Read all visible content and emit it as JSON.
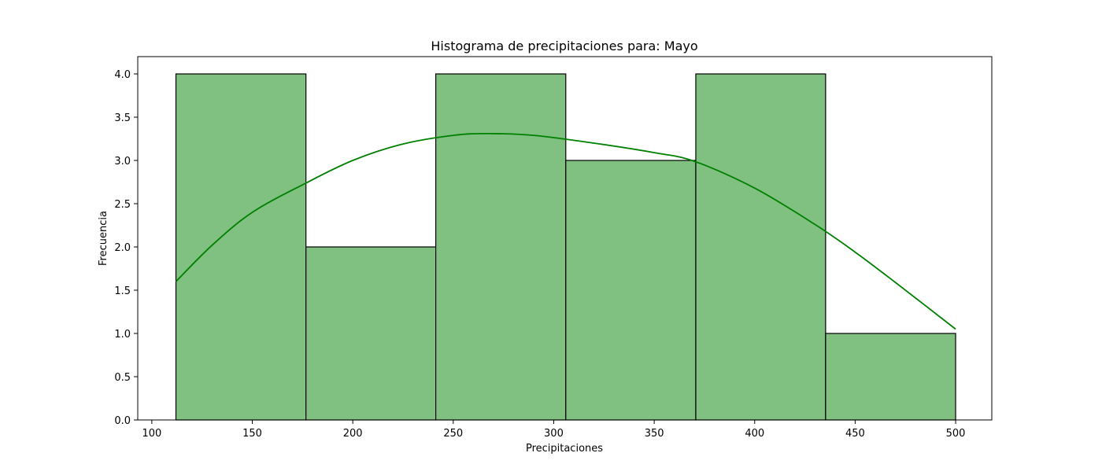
{
  "chart_data": {
    "type": "bar",
    "title": "Histograma de precipitaciones para: Mayo",
    "xlabel": "Precipitaciones",
    "ylabel": "Frecuencia",
    "xlim": [
      93,
      518
    ],
    "ylim": [
      0,
      4.2
    ],
    "xticks": [
      100,
      150,
      200,
      250,
      300,
      350,
      400,
      450,
      500
    ],
    "yticks": [
      0.0,
      0.5,
      1.0,
      1.5,
      2.0,
      2.5,
      3.0,
      3.5,
      4.0
    ],
    "bins": [
      {
        "x0": 112,
        "x1": 176.7,
        "count": 4
      },
      {
        "x0": 176.7,
        "x1": 241.3,
        "count": 2
      },
      {
        "x0": 241.3,
        "x1": 306.0,
        "count": 4
      },
      {
        "x0": 306.0,
        "x1": 370.7,
        "count": 3
      },
      {
        "x0": 370.7,
        "x1": 435.3,
        "count": 4
      },
      {
        "x0": 435.3,
        "x1": 500,
        "count": 1
      }
    ],
    "kde": {
      "x": [
        112,
        130,
        150,
        176,
        200,
        225,
        250,
        267,
        290,
        320,
        350,
        370,
        400,
        430,
        450,
        470,
        500
      ],
      "y": [
        1.6,
        2.02,
        2.4,
        2.73,
        3.0,
        3.19,
        3.29,
        3.31,
        3.29,
        3.2,
        3.09,
        2.99,
        2.68,
        2.26,
        1.94,
        1.59,
        1.05
      ]
    },
    "grid": false,
    "colors": {
      "bar_fill": "#80c080",
      "bar_edge": "#000000",
      "kde_line": "#008000"
    }
  }
}
